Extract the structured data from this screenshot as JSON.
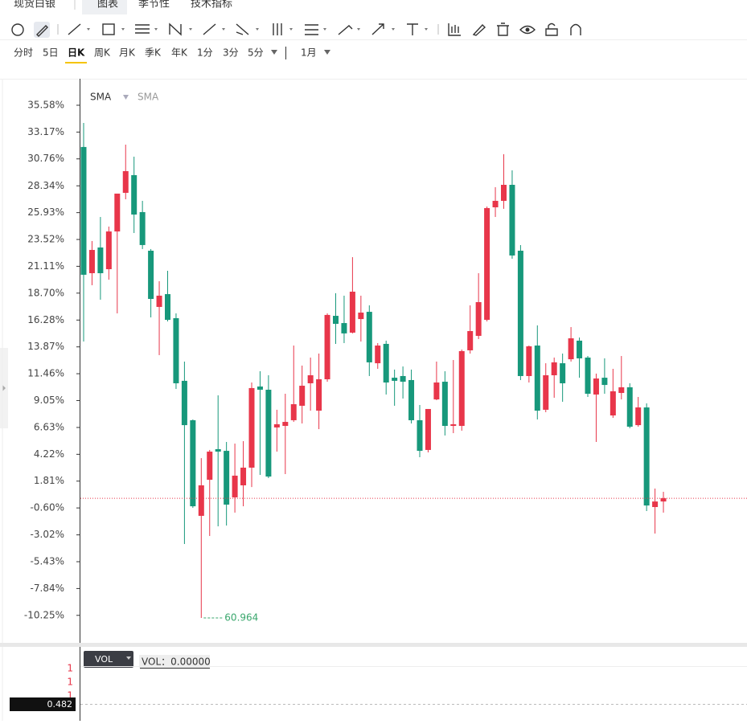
{
  "tabs": [
    "现货白银",
    "图表",
    "季节性",
    "技术指标"
  ],
  "timeframes": [
    "分时",
    "5日",
    "日K",
    "周K",
    "月K",
    "季K",
    "年K",
    "1分",
    "3分",
    "5分"
  ],
  "period": "1月",
  "legend": [
    "SMA",
    "SMA"
  ],
  "chart_data": {
    "type": "candlestick",
    "open": [
      31.83,
      20.49,
      22.8,
      20.85,
      24.24,
      27.71,
      29.3,
      25.98,
      22.51,
      17.46,
      18.61,
      16.45,
      10.82,
      7.28,
      -1.31,
      1.93,
      4.68,
      4.53,
      0.35,
      1.43,
      3.02,
      10.31,
      10.02,
      6.63,
      6.77,
      7.28,
      8.58,
      10.6,
      8.14,
      10.96,
      16.66,
      16.01,
      15.15,
      16.37,
      17.02,
      12.4,
      14.14,
      11.1,
      11.25,
      10.89,
      7.28,
      4.61,
      9.15,
      10.74,
      6.77,
      6.77,
      13.56,
      14.86,
      16.3,
      26.41,
      26.99,
      28.43,
      22.51,
      11.25,
      13.99,
      8.22,
      11.32,
      12.4,
      12.76,
      14.43,
      12.91,
      9.59,
      11.1,
      7.71,
      9.73,
      10.24,
      6.84,
      8.43,
      -0.52,
      -0.02
    ],
    "high": [
      33.99,
      23.38,
      25.54,
      24.68,
      27.64,
      32.04,
      30.96,
      26.99,
      22.66,
      19.77,
      20.71,
      16.88,
      12.55,
      7.35,
      3.88,
      4.61,
      9.52,
      5.33,
      5.18,
      5.4,
      10.67,
      11.68,
      11.32,
      8.22,
      9.66,
      13.99,
      12.19,
      12.91,
      13.27,
      16.88,
      18.69,
      18.47,
      21.93,
      18.47,
      17.6,
      14.21,
      14.43,
      11.83,
      12.11,
      11.83,
      8.65,
      8.29,
      12.55,
      11.68,
      12.69,
      13.63,
      17.6,
      20.49,
      26.48,
      28.22,
      31.18,
      29.73,
      23.02,
      13.99,
      15.8,
      12.4,
      12.91,
      13.27,
      15.65,
      14.71,
      13.05,
      11.47,
      12.84,
      11.9,
      13.05,
      10.6,
      9.37,
      8.79,
      1.14,
      0.85
    ],
    "low": [
      14.35,
      19.41,
      18.11,
      19.91,
      16.88,
      27.13,
      24.1,
      22.66,
      16.52,
      13.13,
      16.16,
      10.09,
      -3.84,
      -0.59,
      -10.48,
      -3.12,
      -2.25,
      -2.18,
      -1.02,
      -0.45,
      1.28,
      2.37,
      2.08,
      4.46,
      2.44,
      7.13,
      6.99,
      8.14,
      6.48,
      10.74,
      14.14,
      14.21,
      15.08,
      14.35,
      11.25,
      11.9,
      9.59,
      8.58,
      9.23,
      6.99,
      3.96,
      4.39,
      9.08,
      5.91,
      6.12,
      6.34,
      13.27,
      14.57,
      16.16,
      25.54,
      26.27,
      21.79,
      10.89,
      10.67,
      7.35,
      8.0,
      9.3,
      8.94,
      12.55,
      11.1,
      9.37,
      5.33,
      9.66,
      7.49,
      9.15,
      6.56,
      6.7,
      -0.88,
      -2.9,
      -1.02
    ],
    "close": [
      20.35,
      22.58,
      20.49,
      24.24,
      27.64,
      29.66,
      25.76,
      23.02,
      18.18,
      18.47,
      16.3,
      10.6,
      6.84,
      -0.45,
      1.43,
      4.46,
      4.46,
      -0.3,
      2.3,
      3.02,
      10.17,
      10.02,
      2.22,
      6.92,
      7.13,
      8.72,
      10.38,
      11.32,
      10.96,
      16.74,
      15.94,
      15.08,
      18.83,
      16.95,
      12.48,
      13.99,
      10.67,
      10.82,
      10.74,
      7.28,
      4.53,
      8.29,
      10.67,
      6.77,
      6.92,
      13.49,
      15.29,
      17.89,
      26.34,
      26.99,
      28.43,
      22.08,
      11.25,
      13.92,
      8.14,
      11.32,
      12.48,
      10.6,
      14.64,
      12.84,
      9.66,
      11.03,
      10.45,
      9.88,
      10.24,
      6.7,
      8.43,
      -0.38,
      -0.02,
      0.27
    ],
    "up_color": "#e8364a",
    "down_color": "#17987b",
    "ylim": [
      -12.72,
      37.96
    ],
    "yticks": [
      {
        "value": 35.58,
        "label": "35.58%"
      },
      {
        "value": 33.17,
        "label": "33.17%"
      },
      {
        "value": 30.76,
        "label": "30.76%"
      },
      {
        "value": 28.34,
        "label": "28.34%"
      },
      {
        "value": 25.93,
        "label": "25.93%"
      },
      {
        "value": 23.52,
        "label": "23.52%"
      },
      {
        "value": 21.11,
        "label": "21.11%"
      },
      {
        "value": 18.7,
        "label": "18.70%"
      },
      {
        "value": 16.28,
        "label": "16.28%"
      },
      {
        "value": 13.87,
        "label": "13.87%"
      },
      {
        "value": 11.46,
        "label": "11.46%"
      },
      {
        "value": 9.05,
        "label": "9.05%"
      },
      {
        "value": 6.63,
        "label": "6.63%"
      },
      {
        "value": 4.22,
        "label": "4.22%"
      },
      {
        "value": 1.81,
        "label": "1.81%"
      },
      {
        "value": -0.6,
        "label": "-0.60%"
      },
      {
        "value": -3.02,
        "label": "-3.02%"
      },
      {
        "value": -5.43,
        "label": "-5.43%"
      },
      {
        "value": -7.84,
        "label": "-7.84%"
      },
      {
        "value": -10.25,
        "label": "-10.25%"
      }
    ],
    "low_label": "60.964",
    "grid": false
  },
  "vol_panel": {
    "button": "VOL",
    "readout": "VOL：0.00000",
    "labels": [
      "1",
      "1",
      "1"
    ],
    "price_tag": "0.482"
  }
}
